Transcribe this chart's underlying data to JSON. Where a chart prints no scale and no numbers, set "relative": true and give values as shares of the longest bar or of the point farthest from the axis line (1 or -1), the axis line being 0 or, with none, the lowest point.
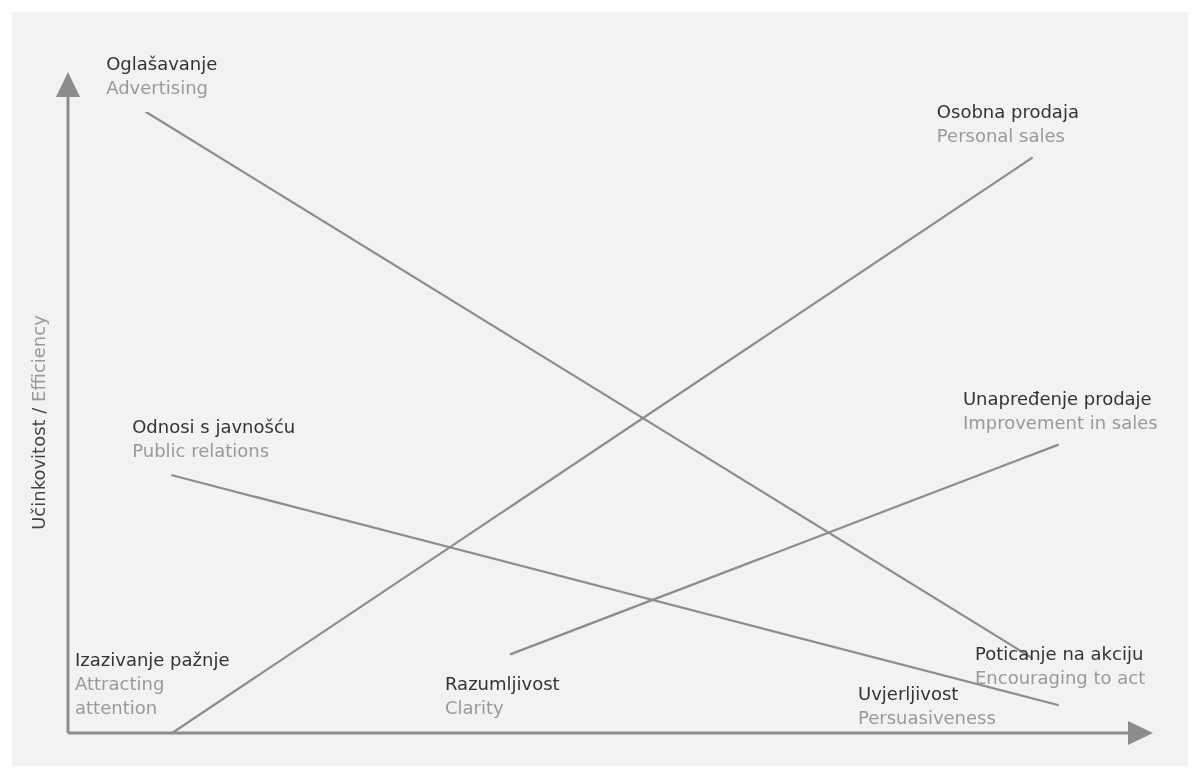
{
  "chart_data": {
    "type": "line",
    "relative": true,
    "ylabel": "Učinkovitost / Efficiency",
    "marker": "none",
    "line_style": "solid",
    "categories": [
      null,
      null,
      null,
      null,
      null,
      null,
      null,
      null,
      null,
      null,
      null,
      null,
      null,
      null,
      null,
      null,
      null,
      null,
      null,
      null,
      null,
      null,
      null,
      null,
      null,
      null,
      null,
      null,
      null,
      null,
      null,
      null,
      null,
      null,
      null,
      null,
      null,
      null,
      null,
      null,
      null
    ],
    "series": [
      {
        "name": "Oglašavanje\nAdvertising",
        "color": "#8c8c8c",
        "values": [
          null,
          null,
          null,
          1,
          null,
          null,
          null,
          null,
          null,
          null,
          null,
          null,
          null,
          null,
          null,
          null,
          null,
          null,
          null,
          null,
          null,
          null,
          null,
          null,
          null,
          null,
          null,
          null,
          null,
          null,
          null,
          null,
          null,
          null,
          null,
          null,
          null,
          0.121,
          null,
          null,
          null
        ]
      },
      {
        "name": "Osobna prodaja\nPersonal sales",
        "color": "#8c8c8c",
        "values": [
          null,
          null,
          null,
          null,
          0,
          null,
          null,
          null,
          null,
          null,
          null,
          null,
          null,
          null,
          null,
          null,
          null,
          null,
          null,
          null,
          null,
          null,
          null,
          null,
          null,
          null,
          null,
          null,
          null,
          null,
          null,
          null,
          null,
          null,
          null,
          null,
          null,
          0.926,
          null,
          null,
          null
        ]
      },
      {
        "name": "Unapređenje prodaje\nImprovement in sales",
        "color": "#8c8c8c",
        "values": [
          null,
          null,
          null,
          null,
          null,
          null,
          null,
          null,
          null,
          null,
          null,
          null,
          null,
          null,
          null,
          null,
          null,
          0.127,
          null,
          null,
          null,
          null,
          null,
          null,
          null,
          null,
          null,
          null,
          null,
          null,
          null,
          null,
          null,
          null,
          null,
          null,
          null,
          null,
          0.464,
          null,
          null
        ]
      },
      {
        "name": "Odnosi s javnošću\nPublic relations",
        "color": "#8c8c8c",
        "values": [
          null,
          null,
          null,
          null,
          0.415,
          null,
          null,
          null,
          null,
          null,
          null,
          null,
          null,
          null,
          null,
          null,
          null,
          null,
          null,
          null,
          null,
          null,
          null,
          null,
          null,
          null,
          null,
          null,
          null,
          null,
          null,
          null,
          null,
          null,
          null,
          null,
          null,
          null,
          0.045,
          null,
          null
        ]
      }
    ],
    "annotations": [
      "Izazivanje pažnje\nAttracting\nattention",
      "Razumljivost\nClarity",
      "Uvjerljivost\nPersuasiveness",
      "Poticanje na akciju\nEncouraging to act"
    ]
  }
}
